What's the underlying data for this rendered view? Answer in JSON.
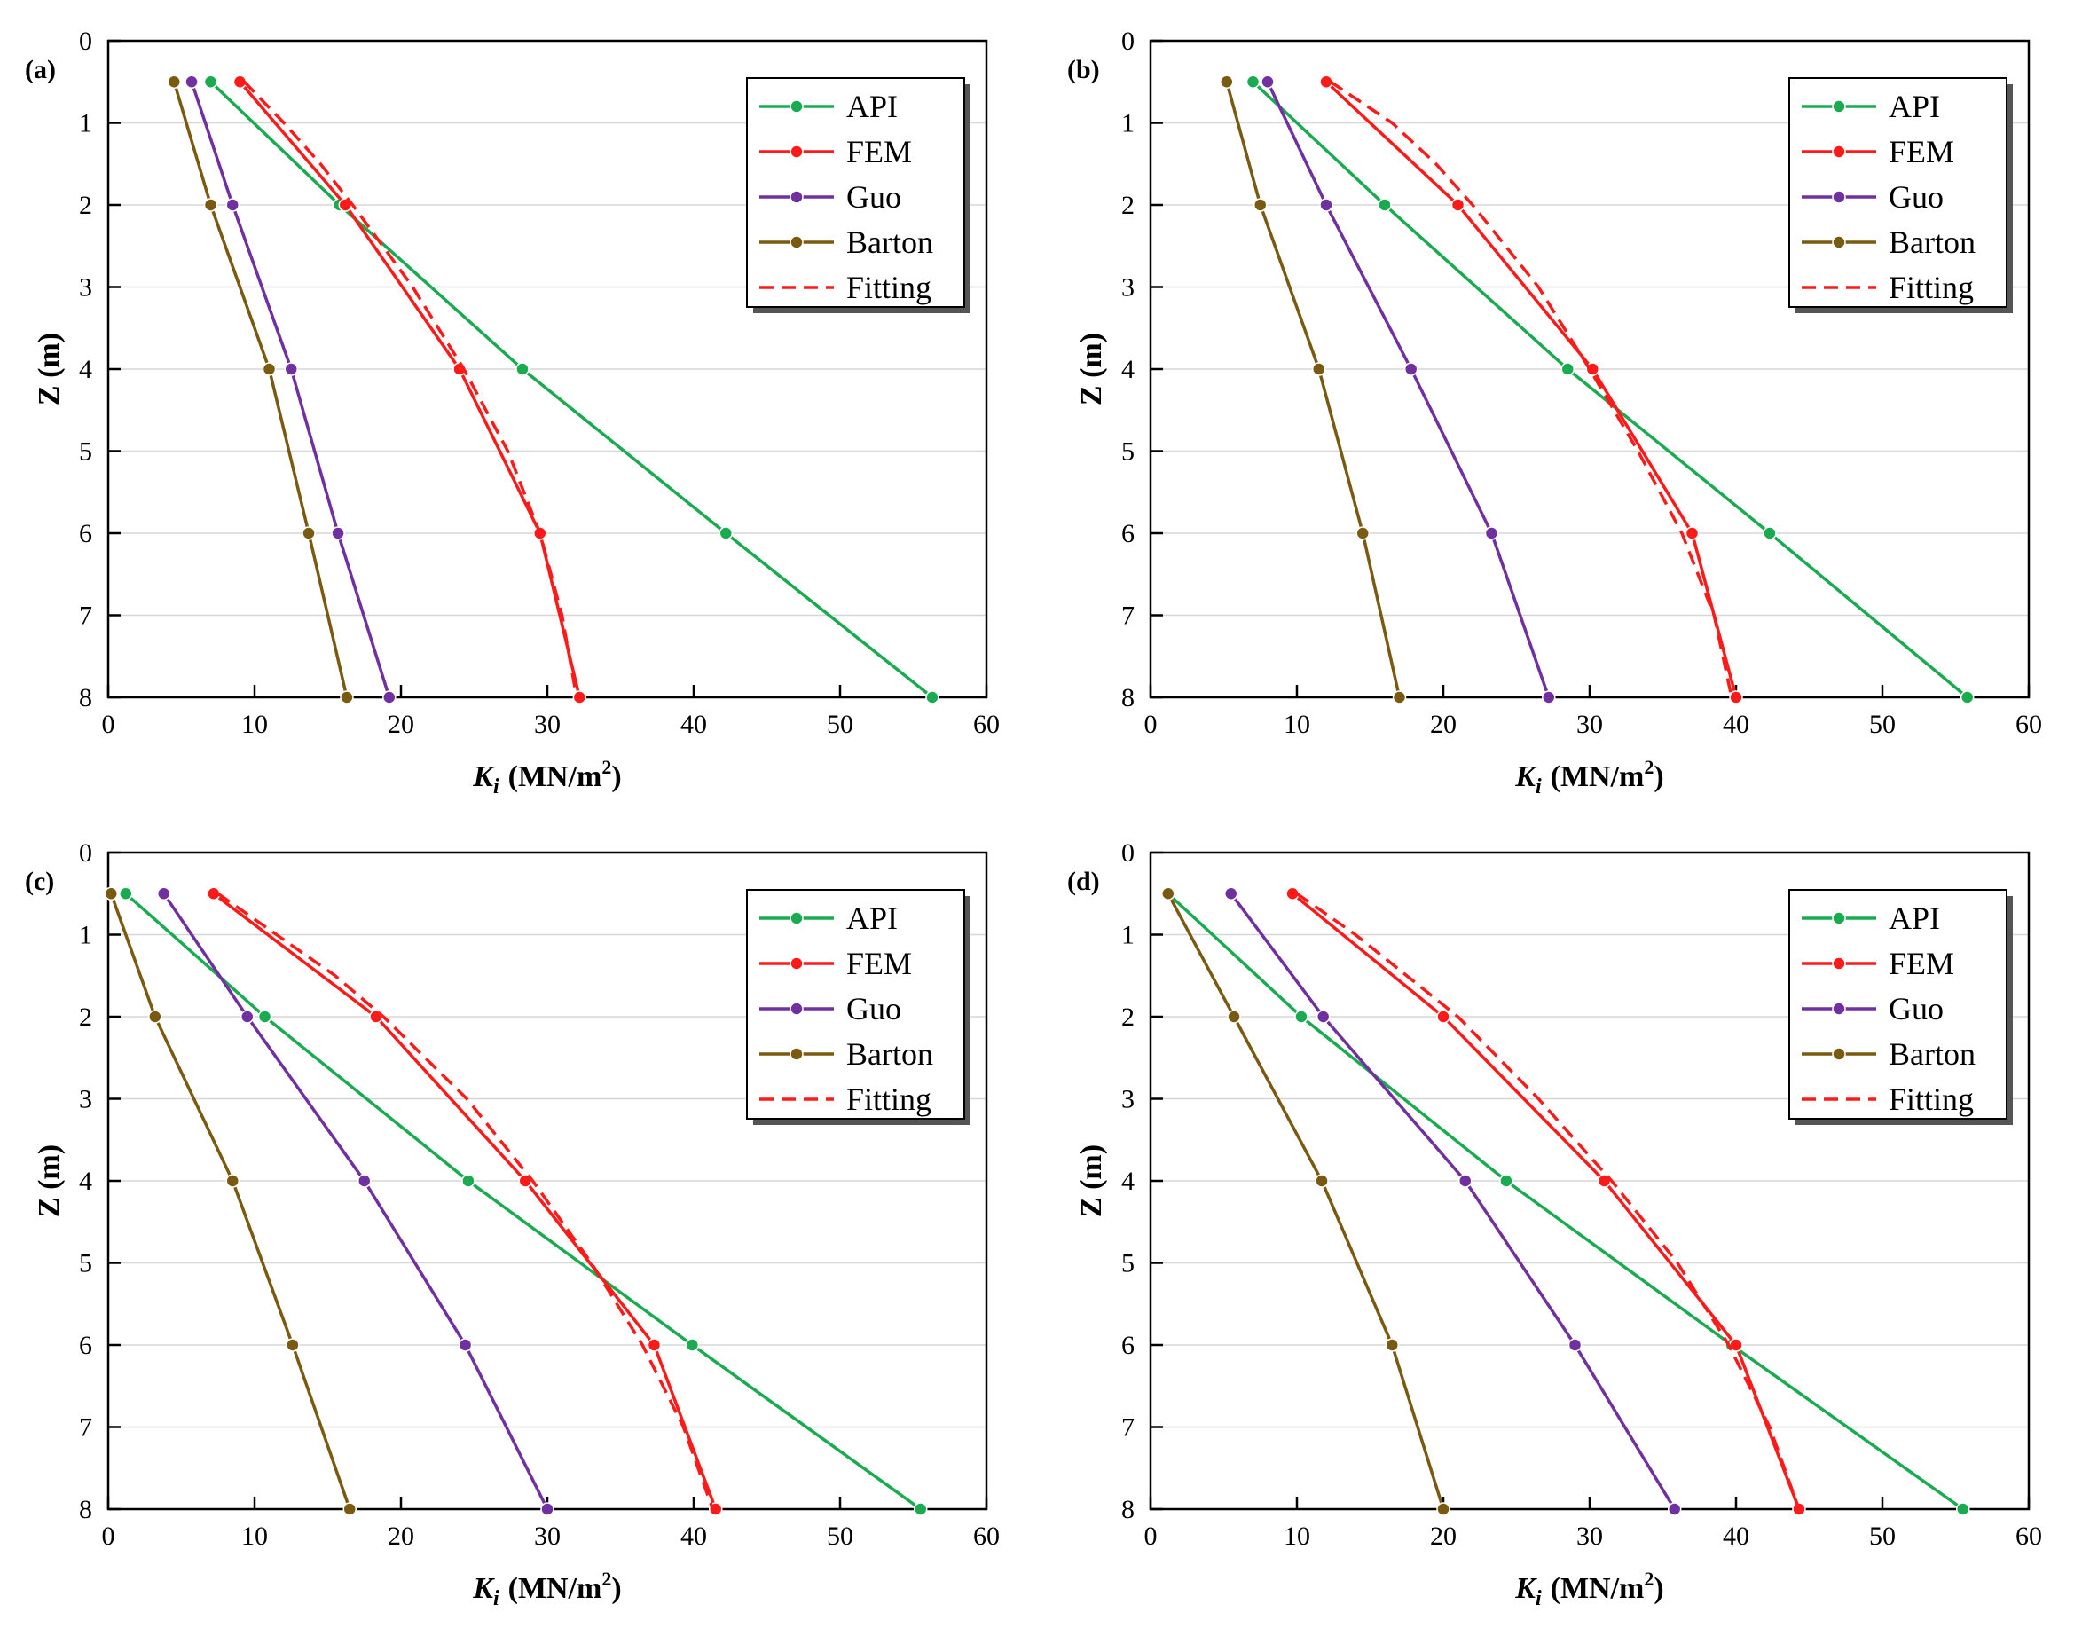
{
  "figure": {
    "x_unit": "MN/m",
    "x_unit_sup": "2"
  },
  "colors": {
    "API": "#1aab50",
    "FEM": "#ff1a1a",
    "Guo": "#7030a0",
    "Barton": "#7a5a10",
    "Fitting": "#ff1a1a",
    "grid": "#d6d6d6"
  },
  "chart_data": [
    {
      "panel": "(a)",
      "type": "line",
      "xlabel_main": "K",
      "xlabel_sub": "i",
      "xlabel_unit": "(MN/m",
      "xlabel_sup": "2",
      "xlabel_close": ")",
      "ylabel": "Z (m)",
      "xlim": [
        0,
        60
      ],
      "ylim": [
        8,
        0
      ],
      "y_inverted": true,
      "xticks": [
        "0",
        "10",
        "20",
        "30",
        "40",
        "50",
        "60"
      ],
      "yticks": [
        "0",
        "1",
        "2",
        "3",
        "4",
        "5",
        "6",
        "7",
        "8"
      ],
      "legend": [
        "API",
        "FEM",
        "Guo",
        "Barton",
        "Fitting"
      ],
      "legend_position": "top-right",
      "series": [
        {
          "name": "API",
          "style": "solid-marker",
          "z": [
            0.5,
            2,
            4,
            6,
            8
          ],
          "k": [
            7,
            15.8,
            28.3,
            42.2,
            56.3
          ]
        },
        {
          "name": "FEM",
          "style": "solid-marker",
          "z": [
            0.5,
            2,
            4,
            6,
            8
          ],
          "k": [
            9,
            16.2,
            24,
            29.5,
            32.2
          ]
        },
        {
          "name": "Guo",
          "style": "solid-marker",
          "z": [
            0.5,
            2,
            4,
            6,
            8
          ],
          "k": [
            5.7,
            8.5,
            12.5,
            15.7,
            19.2
          ]
        },
        {
          "name": "Barton",
          "style": "solid-marker",
          "z": [
            0.5,
            2,
            4,
            6,
            8
          ],
          "k": [
            4.5,
            7,
            11,
            13.7,
            16.3
          ]
        },
        {
          "name": "Fitting",
          "style": "dashed",
          "z": [
            0.5,
            1,
            1.5,
            2,
            3,
            4,
            5,
            6,
            7,
            8
          ],
          "k": [
            9.3,
            12,
            14.5,
            16.7,
            20.8,
            24.3,
            27.3,
            29.5,
            31,
            32
          ]
        }
      ]
    },
    {
      "panel": "(b)",
      "type": "line",
      "xlabel_main": "K",
      "xlabel_sub": "i",
      "xlabel_unit": "(MN/m",
      "xlabel_sup": "2",
      "xlabel_close": ")",
      "ylabel": "Z (m)",
      "xlim": [
        0,
        60
      ],
      "ylim": [
        8,
        0
      ],
      "y_inverted": true,
      "xticks": [
        "0",
        "10",
        "20",
        "30",
        "40",
        "50",
        "60"
      ],
      "yticks": [
        "0",
        "1",
        "2",
        "3",
        "4",
        "5",
        "6",
        "7",
        "8"
      ],
      "legend": [
        "API",
        "FEM",
        "Guo",
        "Barton",
        "Fitting"
      ],
      "legend_position": "top-right",
      "series": [
        {
          "name": "API",
          "style": "solid-marker",
          "z": [
            0.5,
            2,
            4,
            6,
            8
          ],
          "k": [
            7,
            16,
            28.5,
            42.3,
            55.8
          ]
        },
        {
          "name": "FEM",
          "style": "solid-marker",
          "z": [
            0.5,
            2,
            4,
            6,
            8
          ],
          "k": [
            12,
            21,
            30.2,
            37,
            40
          ]
        },
        {
          "name": "Guo",
          "style": "solid-marker",
          "z": [
            0.5,
            2,
            4,
            6,
            8
          ],
          "k": [
            8,
            12,
            17.8,
            23.3,
            27.2
          ]
        },
        {
          "name": "Barton",
          "style": "solid-marker",
          "z": [
            0.5,
            2,
            4,
            6,
            8
          ],
          "k": [
            5.2,
            7.5,
            11.5,
            14.5,
            17
          ]
        },
        {
          "name": "Fitting",
          "style": "dashed",
          "z": [
            0.5,
            1,
            1.5,
            2,
            3,
            4,
            5,
            6,
            7,
            8
          ],
          "k": [
            12.3,
            16.5,
            19.5,
            22,
            26.5,
            30,
            33.3,
            36.3,
            38.5,
            39.7
          ]
        }
      ]
    },
    {
      "panel": "(c)",
      "type": "line",
      "xlabel_main": "K",
      "xlabel_sub": "i",
      "xlabel_unit": "(MN/m",
      "xlabel_sup": "2",
      "xlabel_close": ")",
      "ylabel": "Z (m)",
      "xlim": [
        0,
        60
      ],
      "ylim": [
        8,
        0
      ],
      "y_inverted": true,
      "xticks": [
        "0",
        "10",
        "20",
        "30",
        "40",
        "50",
        "60"
      ],
      "yticks": [
        "0",
        "1",
        "2",
        "3",
        "4",
        "5",
        "6",
        "7",
        "8"
      ],
      "legend": [
        "API",
        "FEM",
        "Guo",
        "Barton",
        "Fitting"
      ],
      "legend_position": "top-right",
      "series": [
        {
          "name": "API",
          "style": "solid-marker",
          "z": [
            0.5,
            2,
            4,
            6,
            8
          ],
          "k": [
            1.2,
            10.7,
            24.6,
            39.9,
            55.5
          ]
        },
        {
          "name": "FEM",
          "style": "solid-marker",
          "z": [
            0.5,
            2,
            4,
            6,
            8
          ],
          "k": [
            7.2,
            18.3,
            28.5,
            37.3,
            41.5
          ]
        },
        {
          "name": "Guo",
          "style": "solid-marker",
          "z": [
            0.5,
            2,
            4,
            6,
            8
          ],
          "k": [
            3.8,
            9.5,
            17.5,
            24.4,
            30
          ]
        },
        {
          "name": "Barton",
          "style": "solid-marker",
          "z": [
            0.5,
            2,
            4,
            6,
            8
          ],
          "k": [
            0.2,
            3.2,
            8.5,
            12.6,
            16.5
          ]
        },
        {
          "name": "Fitting",
          "style": "dashed",
          "z": [
            0.5,
            1,
            1.5,
            2,
            3,
            4,
            5,
            6,
            7,
            8
          ],
          "k": [
            7.5,
            11.5,
            15.5,
            18.8,
            24.5,
            29,
            33,
            36.5,
            39.3,
            41.3
          ]
        }
      ]
    },
    {
      "panel": "(d)",
      "type": "line",
      "xlabel_main": "K",
      "xlabel_sub": "i",
      "xlabel_unit": "(MN/m",
      "xlabel_sup": "2",
      "xlabel_close": ")",
      "ylabel": "Z (m)",
      "xlim": [
        0,
        60
      ],
      "ylim": [
        8,
        0
      ],
      "y_inverted": true,
      "xticks": [
        "0",
        "10",
        "20",
        "30",
        "40",
        "50",
        "60"
      ],
      "yticks": [
        "0",
        "1",
        "2",
        "3",
        "4",
        "5",
        "6",
        "7",
        "8"
      ],
      "legend": [
        "API",
        "FEM",
        "Guo",
        "Barton",
        "Fitting"
      ],
      "legend_position": "top-right",
      "series": [
        {
          "name": "API",
          "style": "solid-marker",
          "z": [
            0.5,
            2,
            4,
            6,
            8
          ],
          "k": [
            1.2,
            10.3,
            24.3,
            39.7,
            55.5
          ]
        },
        {
          "name": "FEM",
          "style": "solid-marker",
          "z": [
            0.5,
            2,
            4,
            6,
            8
          ],
          "k": [
            9.7,
            20,
            31,
            40,
            44.3
          ]
        },
        {
          "name": "Guo",
          "style": "solid-marker",
          "z": [
            0.5,
            2,
            4,
            6,
            8
          ],
          "k": [
            5.5,
            11.8,
            21.5,
            29,
            35.8
          ]
        },
        {
          "name": "Barton",
          "style": "solid-marker",
          "z": [
            0.5,
            2,
            4,
            6,
            8
          ],
          "k": [
            1.2,
            5.7,
            11.7,
            16.5,
            20
          ]
        },
        {
          "name": "Fitting",
          "style": "dashed",
          "z": [
            0.5,
            1,
            1.5,
            2,
            3,
            4,
            5,
            6,
            7,
            8
          ],
          "k": [
            10,
            14,
            17.5,
            21,
            26.5,
            31.5,
            36,
            39.5,
            42.3,
            44.3
          ]
        }
      ]
    }
  ]
}
